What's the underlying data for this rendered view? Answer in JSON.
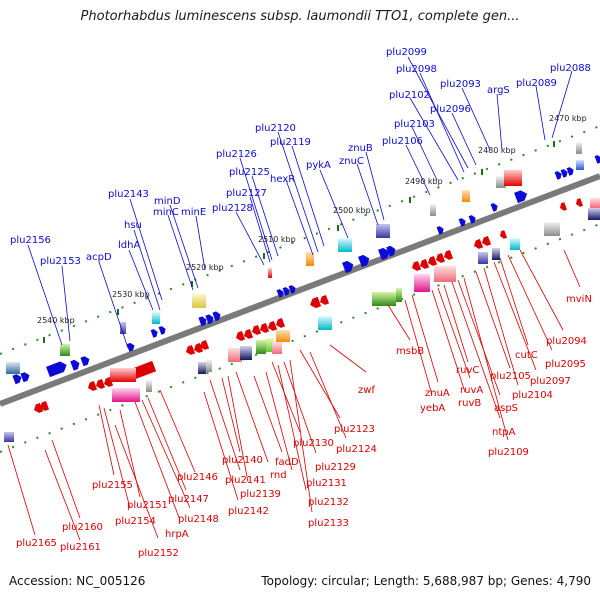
{
  "title": "Photorhabdus luminescens subsp. laumondii TTO1, complete gen...",
  "footer": {
    "accession": "Accession: NC_005126",
    "topology": "Topology: circular; Length: 5,688,987 bp; Genes: 4,790"
  },
  "colors": {
    "blue": "#0b0bd8",
    "red": "#dd0000",
    "backbone": "#777777",
    "dots": "#238a23"
  },
  "ticks": [
    "2470 kbp",
    "2480 kbp",
    "2490 kbp",
    "2500 kbp",
    "2510 kbp",
    "2520 kbp",
    "2530 kbp",
    "2540 kbp"
  ],
  "forward_genes": [
    "plu2156",
    "plu2153",
    "acpD",
    "ldhA",
    "hsu",
    "plu2143",
    "minC",
    "minD",
    "minE",
    "plu2128",
    "plu2127",
    "plu2126",
    "plu2125",
    "hexR",
    "plu2120",
    "plu2119",
    "pykA",
    "znuC",
    "znuB",
    "plu2106",
    "plu2103",
    "plu2102",
    "plu2098",
    "plu2099",
    "plu2096",
    "plu2093",
    "argS",
    "plu2089",
    "plu2088"
  ],
  "reverse_genes": [
    "plu2165",
    "plu2161",
    "plu2160",
    "plu2155",
    "plu2154",
    "plu2152",
    "plu2151",
    "hrpA",
    "plu2148",
    "plu2147",
    "plu2146",
    "plu2142",
    "plu2141",
    "plu2140",
    "plu2139",
    "rnd",
    "fadD",
    "plu2131",
    "plu2130",
    "plu2132",
    "plu2129",
    "plu2133",
    "plu2124",
    "plu2123",
    "zwf",
    "msbB",
    "yebA",
    "znuA",
    "ruvB",
    "ruvA",
    "ruvC",
    "ntpA",
    "aspS",
    "plu2109",
    "plu2105",
    "plu2104",
    "plu2097",
    "cutC",
    "plu2095",
    "plu2094",
    "mviN"
  ]
}
